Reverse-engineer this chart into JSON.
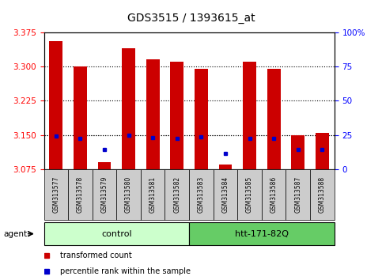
{
  "title": "GDS3515 / 1393615_at",
  "samples": [
    "GSM313577",
    "GSM313578",
    "GSM313579",
    "GSM313580",
    "GSM313581",
    "GSM313582",
    "GSM313583",
    "GSM313584",
    "GSM313585",
    "GSM313586",
    "GSM313587",
    "GSM313588"
  ],
  "red_values": [
    3.355,
    3.3,
    3.09,
    3.34,
    3.315,
    3.31,
    3.295,
    3.085,
    3.31,
    3.295,
    3.15,
    3.155
  ],
  "blue_values": [
    3.148,
    3.143,
    3.118,
    3.15,
    3.145,
    3.143,
    3.147,
    3.11,
    3.143,
    3.143,
    3.118,
    3.118
  ],
  "y_min": 3.075,
  "y_max": 3.375,
  "y_ticks_left": [
    3.075,
    3.15,
    3.225,
    3.3,
    3.375
  ],
  "y_ticks_right": [
    0,
    25,
    50,
    75,
    100
  ],
  "grid_values": [
    3.15,
    3.225,
    3.3
  ],
  "control_label": "control",
  "treatment_label": "htt-171-82Q",
  "agent_label": "agent",
  "legend_red": "transformed count",
  "legend_blue": "percentile rank within the sample",
  "bar_color": "#CC0000",
  "blue_color": "#0000CC",
  "control_bg": "#CCFFCC",
  "treatment_bg": "#66CC66",
  "sample_bg": "#CCCCCC",
  "bar_width": 0.55,
  "figwidth": 4.83,
  "figheight": 3.54,
  "dpi": 100
}
